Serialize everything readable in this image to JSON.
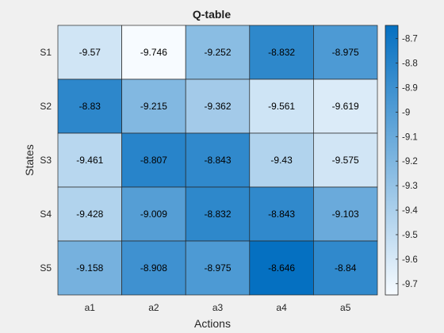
{
  "chart_data": {
    "type": "heatmap",
    "title": "Q-table",
    "xlabel": "Actions",
    "ylabel": "States",
    "x_categories": [
      "a1",
      "a2",
      "a3",
      "a4",
      "a5"
    ],
    "y_categories": [
      "S1",
      "S2",
      "S3",
      "S4",
      "S5"
    ],
    "values": [
      [
        -9.57,
        -9.746,
        -9.252,
        -8.832,
        -8.975
      ],
      [
        -8.83,
        -9.215,
        -9.362,
        -9.561,
        -9.619
      ],
      [
        -9.461,
        -8.807,
        -8.843,
        -9.43,
        -9.575
      ],
      [
        -9.428,
        -9.009,
        -8.832,
        -8.843,
        -9.103
      ],
      [
        -9.158,
        -8.908,
        -8.975,
        -8.646,
        -8.84
      ]
    ],
    "cell_labels": [
      [
        "-9.57",
        "-9.746",
        "-9.252",
        "-8.832",
        "-8.975"
      ],
      [
        "-8.83",
        "-9.215",
        "-9.362",
        "-9.561",
        "-9.619"
      ],
      [
        "-9.461",
        "-8.807",
        "-8.843",
        "-9.43",
        "-9.575"
      ],
      [
        "-9.428",
        "-9.009",
        "-8.832",
        "-8.843",
        "-9.103"
      ],
      [
        "-9.158",
        "-8.908",
        "-8.975",
        "-8.646",
        "-8.84"
      ]
    ],
    "colorbar": {
      "range": [
        -9.746,
        -8.646
      ],
      "ticks": [
        -8.7,
        -8.8,
        -8.9,
        -9,
        -9.1,
        -9.2,
        -9.3,
        -9.4,
        -9.5,
        -9.6,
        -9.7
      ],
      "tick_labels": [
        "-8.7",
        "-8.8",
        "-8.9",
        "-9",
        "-9.1",
        "-9.2",
        "-9.3",
        "-9.4",
        "-9.5",
        "-9.6",
        "-9.7"
      ],
      "low_color": "#f7fbff",
      "high_color": "#0570c1"
    },
    "grid_line_color": "#262626",
    "figure_background": "#f0f0f0"
  }
}
